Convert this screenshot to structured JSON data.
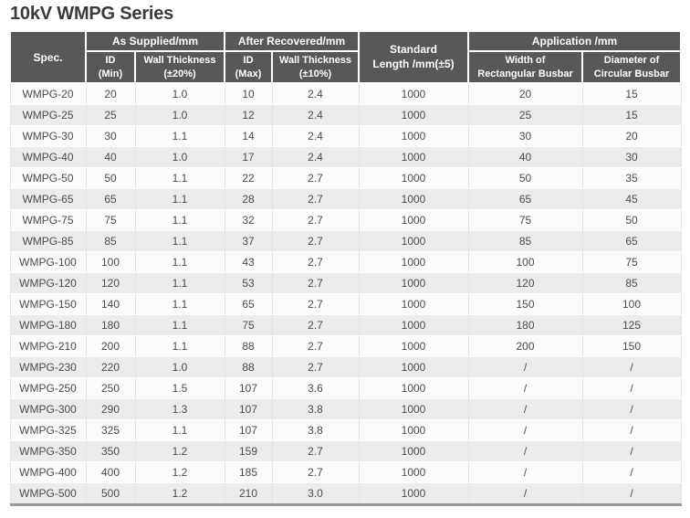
{
  "page_title": "10kV WMPG Series",
  "colors": {
    "header_bg": "#58585B",
    "header_text": "#FFFFFF",
    "row_odd_bg": "#FBFBFB",
    "row_even_bg": "#EBEBEC",
    "body_text": "#4C4C4F",
    "title_text": "#3A3A3C",
    "bottom_border": "#9A9A9A"
  },
  "table": {
    "header": {
      "spec": "Spec.",
      "as_supplied_group": "As Supplied/mm",
      "after_recovered_group": "After Recovered/mm",
      "standard_length_line1": "Standard",
      "standard_length_line2": "Length /mm(±5)",
      "application_group": "Application /mm",
      "id_min_line1": "ID",
      "id_min_line2": "(Min)",
      "wall_20_line1": "Wall Thickness",
      "wall_20_line2": "(±20%)",
      "id_max_line1": "ID",
      "id_max_line2": "(Max)",
      "wall_10_line1": "Wall Thickness",
      "wall_10_line2": "(±10%)",
      "width_busbar_line1": "Width of",
      "width_busbar_line2": "Rectangular Busbar",
      "diameter_busbar_line1": "Diameter of",
      "diameter_busbar_line2": "Circular Busbar"
    },
    "columns": [
      "spec",
      "id-min",
      "wall-thickness-20",
      "id-max",
      "wall-thickness-10",
      "standard-length",
      "width-rectangular-busbar",
      "diameter-circular-busbar"
    ],
    "rows": [
      [
        "WMPG-20",
        "20",
        "1.0",
        "10",
        "2.4",
        "1000",
        "20",
        "15"
      ],
      [
        "WMPG-25",
        "25",
        "1.0",
        "12",
        "2.4",
        "1000",
        "25",
        "15"
      ],
      [
        "WMPG-30",
        "30",
        "1.1",
        "14",
        "2.4",
        "1000",
        "30",
        "20"
      ],
      [
        "WMPG-40",
        "40",
        "1.0",
        "17",
        "2.4",
        "1000",
        "40",
        "30"
      ],
      [
        "WMPG-50",
        "50",
        "1.1",
        "22",
        "2.7",
        "1000",
        "50",
        "35"
      ],
      [
        "WMPG-65",
        "65",
        "1.1",
        "28",
        "2.7",
        "1000",
        "65",
        "45"
      ],
      [
        "WMPG-75",
        "75",
        "1.1",
        "32",
        "2.7",
        "1000",
        "75",
        "50"
      ],
      [
        "WMPG-85",
        "85",
        "1.1",
        "37",
        "2.7",
        "1000",
        "85",
        "65"
      ],
      [
        "WMPG-100",
        "100",
        "1.1",
        "43",
        "2.7",
        "1000",
        "100",
        "75"
      ],
      [
        "WMPG-120",
        "120",
        "1.1",
        "53",
        "2.7",
        "1000",
        "120",
        "85"
      ],
      [
        "WMPG-150",
        "140",
        "1.1",
        "65",
        "2.7",
        "1000",
        "150",
        "100"
      ],
      [
        "WMPG-180",
        "180",
        "1.1",
        "75",
        "2.7",
        "1000",
        "180",
        "125"
      ],
      [
        "WMPG-210",
        "200",
        "1.1",
        "88",
        "2.7",
        "1000",
        "200",
        "150"
      ],
      [
        "WMPG-230",
        "220",
        "1.0",
        "88",
        "2.7",
        "1000",
        "/",
        "/"
      ],
      [
        "WMPG-250",
        "250",
        "1.5",
        "107",
        "3.6",
        "1000",
        "/",
        "/"
      ],
      [
        "WMPG-300",
        "290",
        "1.3",
        "107",
        "3.8",
        "1000",
        "/",
        "/"
      ],
      [
        "WMPG-325",
        "325",
        "1.1",
        "107",
        "3.8",
        "1000",
        "/",
        "/"
      ],
      [
        "WMPG-350",
        "350",
        "1.2",
        "159",
        "2.7",
        "1000",
        "/",
        "/"
      ],
      [
        "WMPG-400",
        "400",
        "1.2",
        "185",
        "2.7",
        "1000",
        "/",
        "/"
      ],
      [
        "WMPG-500",
        "500",
        "1.2",
        "210",
        "3.0",
        "1000",
        "/",
        "/"
      ]
    ]
  }
}
